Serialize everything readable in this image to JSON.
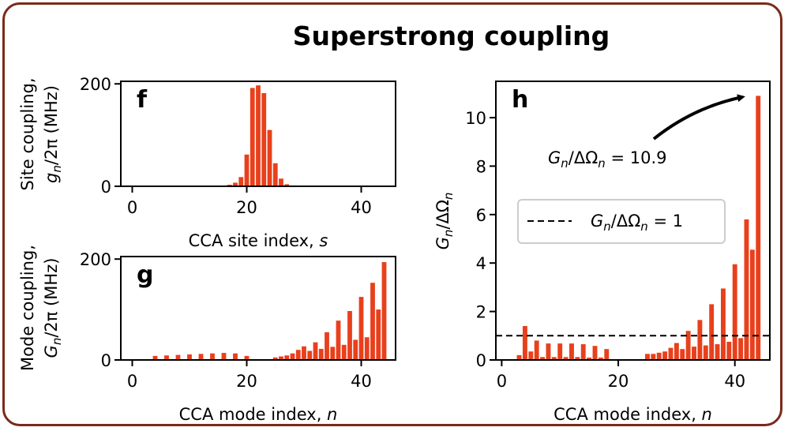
{
  "figure": {
    "title": "Superstrong coupling",
    "bar_color": "#e8401c",
    "frame_color": "#7a2a1a"
  },
  "chart_data": [
    {
      "type": "bar",
      "panel_label": "f",
      "xlabel": "CCA site index, s",
      "ylabel_line1": "Site coupling,",
      "ylabel_line2": "g_n/2π (MHz)",
      "xlim": [
        -2,
        46
      ],
      "ylim": [
        0,
        205
      ],
      "xticks": [
        0,
        20,
        40
      ],
      "yticks": [
        0,
        200
      ],
      "x": [
        17,
        18,
        19,
        20,
        21,
        22,
        23,
        24,
        25,
        26,
        27
      ],
      "values": [
        3,
        7,
        18,
        62,
        192,
        197,
        182,
        110,
        45,
        15,
        4
      ]
    },
    {
      "type": "bar",
      "panel_label": "g",
      "xlabel": "CCA mode index, n",
      "ylabel_line1": "Mode coupling,",
      "ylabel_line2": "G_n/2π (MHz)",
      "xlim": [
        -2,
        46
      ],
      "ylim": [
        0,
        205
      ],
      "xticks": [
        0,
        20,
        40
      ],
      "yticks": [
        0,
        200
      ],
      "x": [
        4,
        6,
        8,
        10,
        12,
        14,
        16,
        18,
        20,
        25,
        26,
        27,
        28,
        29,
        30,
        31,
        32,
        33,
        34,
        35,
        36,
        37,
        38,
        39,
        40,
        41,
        42,
        43,
        44
      ],
      "values": [
        8,
        9,
        10,
        11,
        12,
        13,
        14,
        13,
        8,
        5,
        7,
        9,
        13,
        20,
        27,
        18,
        35,
        22,
        55,
        26,
        78,
        30,
        97,
        40,
        125,
        45,
        153,
        100,
        194
      ]
    },
    {
      "type": "bar",
      "panel_label": "h",
      "xlabel": "CCA mode index, n",
      "ylabel": "G_n/ΔΩ_n",
      "xlim": [
        -1,
        46
      ],
      "ylim": [
        0,
        11.5
      ],
      "xticks": [
        0,
        20,
        40
      ],
      "yticks": [
        0,
        2,
        4,
        6,
        8,
        10
      ],
      "x": [
        3,
        4,
        5,
        6,
        7,
        8,
        9,
        10,
        11,
        12,
        13,
        14,
        15,
        16,
        17,
        18,
        25,
        26,
        27,
        28,
        29,
        30,
        31,
        32,
        33,
        34,
        35,
        36,
        37,
        38,
        39,
        40,
        41,
        42,
        43,
        44
      ],
      "values": [
        0.2,
        1.4,
        0.35,
        0.8,
        0.12,
        0.68,
        0.12,
        0.68,
        0.12,
        0.68,
        0.12,
        0.65,
        0.1,
        0.58,
        0.1,
        0.45,
        0.25,
        0.25,
        0.3,
        0.35,
        0.5,
        0.7,
        0.45,
        1.2,
        0.55,
        1.65,
        0.6,
        2.3,
        0.65,
        2.95,
        0.75,
        3.95,
        0.9,
        5.8,
        4.55,
        10.9
      ],
      "reference_line": {
        "y": 1,
        "label": "G_n/ΔΩ_n = 1"
      },
      "legend_position": "center-right",
      "annotation": "G_n/ΔΩ_n = 10.9"
    }
  ]
}
